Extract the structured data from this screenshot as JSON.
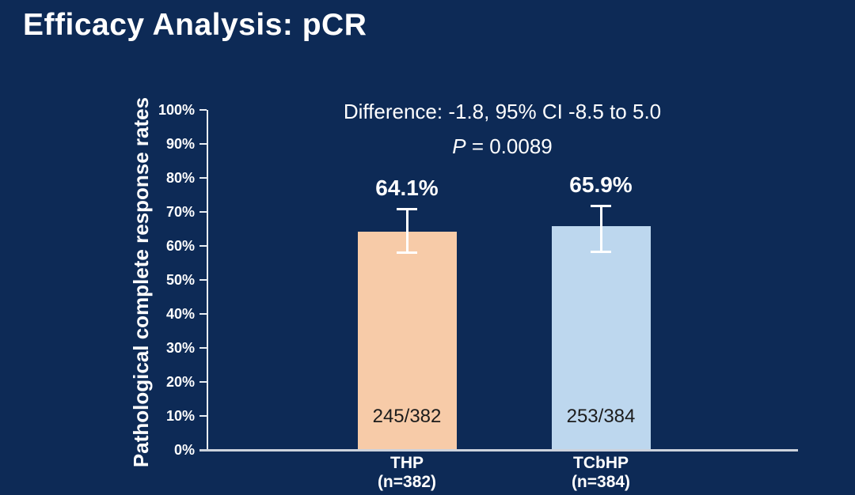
{
  "title": "Efficacy Analysis: pCR",
  "colors": {
    "background": "#0d2a56",
    "axis": "#e9eef4",
    "baseline": "#ccd2dc",
    "text": "#ffffff",
    "count_text": "#1c1c1c"
  },
  "chart_data": {
    "type": "bar",
    "title": "Efficacy Analysis: pCR",
    "xlabel": "",
    "ylabel": "Pathological complete response rates",
    "ylim": [
      0,
      100
    ],
    "grid": false,
    "legend": false,
    "y_ticks": [
      "0%",
      "10%",
      "20%",
      "30%",
      "40%",
      "50%",
      "60%",
      "70%",
      "80%",
      "90%",
      "100%"
    ],
    "annotations": {
      "difference": "Difference: -1.8, 95% CI -8.5 to 5.0",
      "p_italic": "P",
      "p_rest": " = 0.0089"
    },
    "categories": [
      "THP (n=382)",
      "TCbHP (n=384)"
    ],
    "bars": [
      {
        "name": "THP",
        "n_label": "(n=382)",
        "value": 64.1,
        "value_label": "64.1%",
        "numerator": 245,
        "denominator": 382,
        "count_label": "245/382",
        "color": "#f7cba8",
        "error_low": 57.7,
        "error_high": 71.2
      },
      {
        "name": "TCbHP",
        "n_label": "(n=384)",
        "value": 65.9,
        "value_label": "65.9%",
        "numerator": 253,
        "denominator": 384,
        "count_label": "253/384",
        "color": "#bdd7ee",
        "error_low": 58.0,
        "error_high": 72.1
      }
    ]
  }
}
